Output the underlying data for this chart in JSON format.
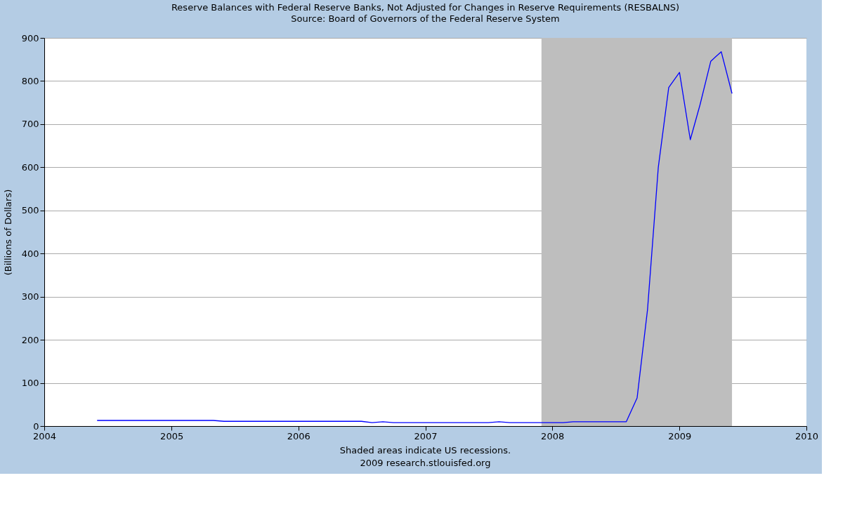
{
  "chart_data": {
    "type": "line",
    "title": "Reserve Balances with Federal Reserve Banks, Not Adjusted for Changes in Reserve Requirements (RESBALNS)",
    "subtitle": "Source: Board of Governors of the Federal Reserve System",
    "ylabel": "(Billions of Dollars)",
    "annotations": [
      "Shaded areas indicate US recessions.",
      "2009 research.stlouisfed.org"
    ],
    "x": [
      "2004-06",
      "2004-07",
      "2004-08",
      "2004-09",
      "2004-10",
      "2004-11",
      "2004-12",
      "2005-01",
      "2005-02",
      "2005-03",
      "2005-04",
      "2005-05",
      "2005-06",
      "2005-07",
      "2005-08",
      "2005-09",
      "2005-10",
      "2005-11",
      "2005-12",
      "2006-01",
      "2006-02",
      "2006-03",
      "2006-04",
      "2006-05",
      "2006-06",
      "2006-07",
      "2006-08",
      "2006-09",
      "2006-10",
      "2006-11",
      "2006-12",
      "2007-01",
      "2007-02",
      "2007-03",
      "2007-04",
      "2007-05",
      "2007-06",
      "2007-07",
      "2007-08",
      "2007-09",
      "2007-10",
      "2007-11",
      "2007-12",
      "2008-01",
      "2008-02",
      "2008-03",
      "2008-04",
      "2008-05",
      "2008-06",
      "2008-07",
      "2008-08",
      "2008-09",
      "2008-10",
      "2008-11",
      "2008-12",
      "2009-01",
      "2009-02",
      "2009-03",
      "2009-04",
      "2009-05",
      "2009-06"
    ],
    "series": [
      {
        "color": "#0000ff",
        "values": [
          13,
          13,
          13,
          13,
          13,
          13,
          13,
          13,
          13,
          13,
          13,
          13,
          11,
          11,
          11,
          11,
          11,
          11,
          11,
          11,
          11,
          11,
          11,
          11,
          11,
          11,
          8,
          10,
          8,
          8,
          8,
          8,
          8,
          8,
          8,
          8,
          8,
          8,
          10,
          8,
          8,
          8,
          8,
          8,
          8,
          10,
          10,
          10,
          10,
          10,
          10,
          65,
          270,
          600,
          785,
          820,
          664,
          745,
          846,
          868,
          771
        ]
      }
    ],
    "xlim": [
      "2004-01-01",
      "2010-01-01"
    ],
    "xticks": [
      {
        "value": "2004",
        "label": "2004"
      },
      {
        "value": "2005",
        "label": "2005"
      },
      {
        "value": "2006",
        "label": "2006"
      },
      {
        "value": "2007",
        "label": "2007"
      },
      {
        "value": "2008",
        "label": "2008"
      },
      {
        "value": "2009",
        "label": "2009"
      },
      {
        "value": "2010",
        "label": "2010"
      }
    ],
    "ylim": [
      0,
      900
    ],
    "yticks": [
      0,
      100,
      200,
      300,
      400,
      500,
      600,
      700,
      800,
      900
    ],
    "bands": [
      {
        "axis": "x",
        "from": "2007-12",
        "to": "2009-06",
        "color": "#bebebe"
      }
    ],
    "grid": "y",
    "marker": "none",
    "line_style": "solid"
  }
}
